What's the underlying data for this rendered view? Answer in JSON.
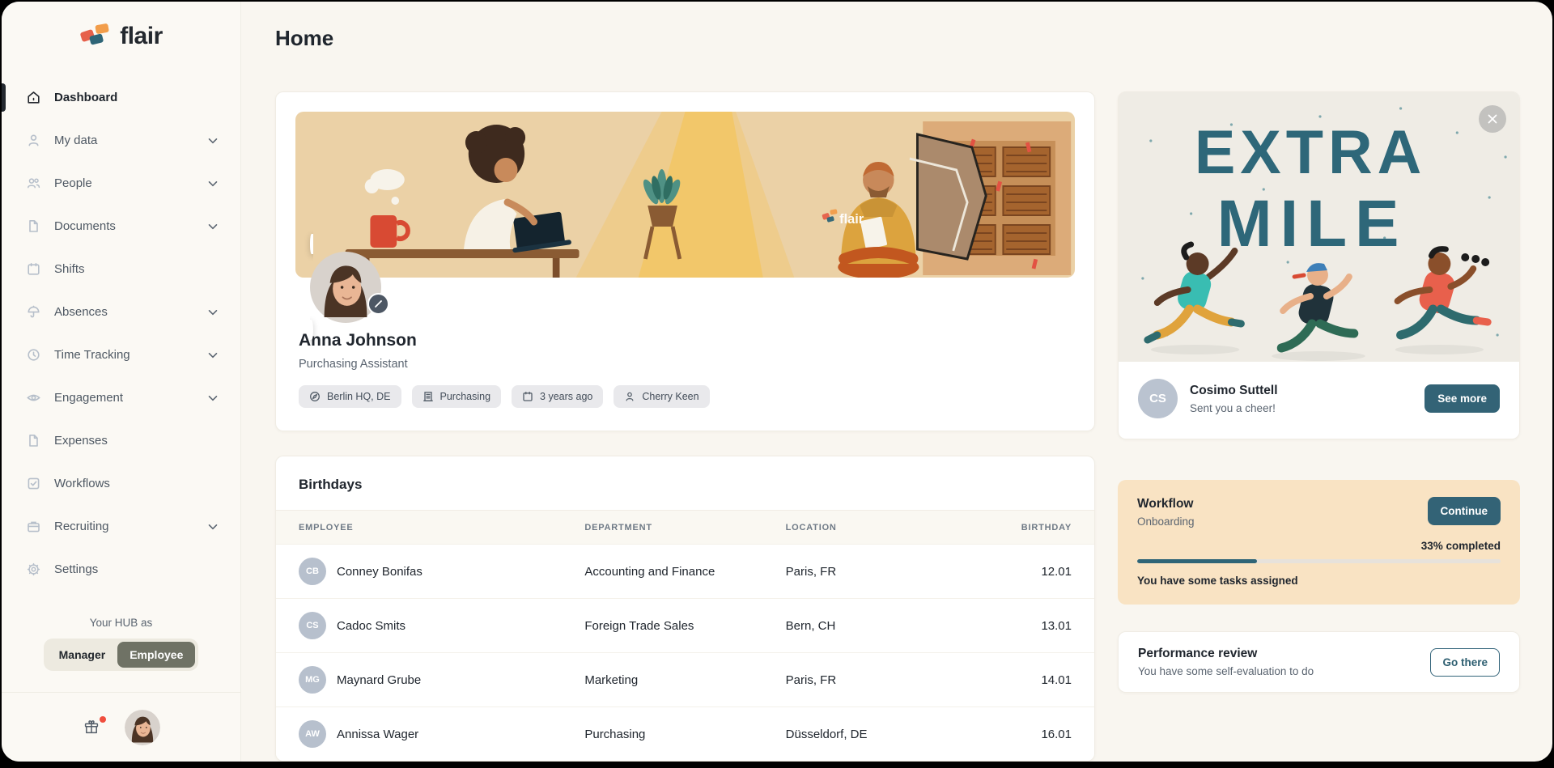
{
  "page": {
    "title": "Home"
  },
  "sidebar": {
    "logo_text": "flair",
    "items": [
      {
        "label": "Dashboard",
        "icon": "home-icon",
        "active": true,
        "chevron": false
      },
      {
        "label": "My data",
        "icon": "user-icon",
        "active": false,
        "chevron": true
      },
      {
        "label": "People",
        "icon": "users-icon",
        "active": false,
        "chevron": true
      },
      {
        "label": "Documents",
        "icon": "document-icon",
        "active": false,
        "chevron": true
      },
      {
        "label": "Shifts",
        "icon": "calendar-icon",
        "active": false,
        "chevron": false
      },
      {
        "label": "Absences",
        "icon": "umbrella-icon",
        "active": false,
        "chevron": true
      },
      {
        "label": "Time Tracking",
        "icon": "clock-icon",
        "active": false,
        "chevron": true
      },
      {
        "label": "Engagement",
        "icon": "eye-icon",
        "active": false,
        "chevron": true
      },
      {
        "label": "Expenses",
        "icon": "document-icon",
        "active": false,
        "chevron": false
      },
      {
        "label": "Workflows",
        "icon": "check-square-icon",
        "active": false,
        "chevron": false
      },
      {
        "label": "Recruiting",
        "icon": "briefcase-icon",
        "active": false,
        "chevron": true
      },
      {
        "label": "Settings",
        "icon": "gear-icon",
        "active": false,
        "chevron": false
      }
    ],
    "hub_label": "Your HUB as",
    "hub_toggle": {
      "options": [
        "Manager",
        "Employee"
      ],
      "selected": "Employee"
    }
  },
  "profile": {
    "name": "Anna Johnson",
    "role": "Purchasing Assistant",
    "badges": [
      {
        "icon": "location-icon",
        "label": "Berlin HQ, DE"
      },
      {
        "icon": "building-icon",
        "label": "Purchasing"
      },
      {
        "icon": "calendar-icon",
        "label": "3 years ago"
      },
      {
        "icon": "user-icon",
        "label": "Cherry Keen"
      }
    ]
  },
  "birthdays": {
    "title": "Birthdays",
    "columns": [
      "EMPLOYEE",
      "DEPARTMENT",
      "LOCATION",
      "BIRTHDAY"
    ],
    "rows": [
      {
        "initials": "CB",
        "name": "Conney Bonifas",
        "department": "Accounting and Finance",
        "location": "Paris, FR",
        "birthday": "12.01"
      },
      {
        "initials": "CS",
        "name": "Cadoc Smits",
        "department": "Foreign Trade Sales",
        "location": "Bern, CH",
        "birthday": "13.01"
      },
      {
        "initials": "MG",
        "name": "Maynard Grube",
        "department": "Marketing",
        "location": "Paris, FR",
        "birthday": "14.01"
      },
      {
        "initials": "AW",
        "name": "Annissa Wager",
        "department": "Purchasing",
        "location": "Düsseldorf, DE",
        "birthday": "16.01"
      }
    ]
  },
  "cheer": {
    "banner_line1": "EXTRA",
    "banner_line2": "MILE",
    "initials": "CS",
    "name": "Cosimo Suttell",
    "message": "Sent you a cheer!",
    "button": "See more"
  },
  "workflow": {
    "title": "Workflow",
    "subtitle": "Onboarding",
    "button": "Continue",
    "progress_label": "33% completed",
    "progress_percent": 33,
    "note": "You have some tasks assigned"
  },
  "performance": {
    "title": "Performance review",
    "subtitle": "You have some self-evaluation to do",
    "button": "Go there"
  },
  "colors": {
    "accent_teal": "#336376",
    "extra_mile_text": "#2e6779",
    "workflow_bg": "#f9e3c3",
    "notification_red": "#f04e3e",
    "logo_red": "#e6604a",
    "logo_teal": "#2e6577",
    "logo_orange": "#f29d4a"
  }
}
